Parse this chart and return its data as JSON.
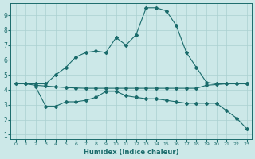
{
  "xlabel": "Humidex (Indice chaleur)",
  "bg_color": "#cce8e8",
  "grid_color": "#aad0d0",
  "line_color": "#1a6b6b",
  "xlim": [
    -0.5,
    23.5
  ],
  "ylim": [
    0.7,
    9.8
  ],
  "xticks": [
    0,
    1,
    2,
    3,
    4,
    5,
    6,
    7,
    8,
    9,
    10,
    11,
    12,
    13,
    14,
    15,
    16,
    17,
    18,
    19,
    20,
    21,
    22,
    23
  ],
  "yticks": [
    1,
    2,
    3,
    4,
    5,
    6,
    7,
    8,
    9
  ],
  "curve1_x": [
    1,
    2,
    3,
    4,
    5,
    6,
    7,
    8,
    9,
    10,
    11,
    12,
    13,
    14,
    15,
    16,
    17,
    18,
    19,
    20,
    21,
    22,
    23
  ],
  "curve1_y": [
    4.4,
    4.4,
    4.4,
    5.0,
    5.5,
    6.2,
    6.5,
    6.6,
    6.5,
    7.5,
    7.0,
    7.7,
    9.5,
    9.5,
    9.3,
    8.3,
    6.5,
    5.5,
    4.5,
    4.4,
    4.4,
    4.4,
    4.4
  ],
  "curve2_x": [
    2,
    3,
    4,
    5,
    6,
    7,
    8,
    9,
    10,
    11,
    12,
    13,
    14,
    15,
    16,
    17,
    18,
    19,
    20,
    21,
    22,
    23
  ],
  "curve2_y": [
    4.2,
    2.9,
    2.9,
    3.2,
    3.2,
    3.3,
    3.5,
    3.9,
    3.9,
    3.6,
    3.5,
    3.4,
    3.4,
    3.3,
    3.2,
    3.1,
    3.1,
    3.1,
    3.1,
    2.6,
    2.1,
    1.4
  ],
  "curve3_x": [
    0,
    1,
    2,
    3,
    4,
    5,
    6,
    7,
    8,
    9,
    10,
    11,
    12,
    13,
    14,
    15,
    16,
    17,
    18,
    19,
    20,
    21,
    22,
    23
  ],
  "curve3_y": [
    4.4,
    4.4,
    4.3,
    4.25,
    4.2,
    4.15,
    4.12,
    4.1,
    4.1,
    4.1,
    4.1,
    4.1,
    4.1,
    4.1,
    4.1,
    4.1,
    4.1,
    4.1,
    4.1,
    4.3,
    4.35,
    4.4,
    4.4,
    4.4
  ]
}
